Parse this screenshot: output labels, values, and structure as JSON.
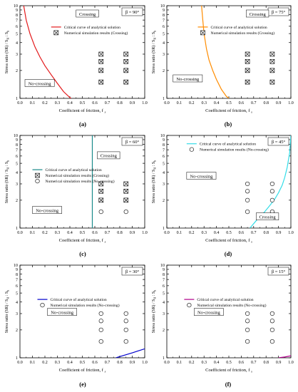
{
  "figure": {
    "panels": [
      {
        "label": "(a)",
        "beta": "β = 90°",
        "xlabel": "Coefficient of friction, f",
        "xsub": "s",
        "ylabel": "Stress ratio (SR) / S",
        "crossing": "Crossing",
        "nocrossing": "No-crossing",
        "legend": [
          "Critical curve of analytical solution",
          "Numerical simulation results (Crossing)"
        ]
      },
      {
        "label": "(b)",
        "beta": "β = 75°",
        "xlabel": "Coefficient of friction, f",
        "xsub": "s",
        "ylabel": "Stress ratio (SR) / S",
        "crossing": "Crossing",
        "nocrossing": "No-crossing",
        "legend": [
          "Critical curve of analytical solution",
          "Numerical simulation results (Crossing)"
        ]
      },
      {
        "label": "(c)",
        "beta": "β = 60°",
        "xlabel": "Coefficient of friction, f",
        "xsub": "s",
        "ylabel": "Stress ratio (SR) / S",
        "crossing": "Crossing",
        "nocrossing": "No-crossing",
        "legend": [
          "Critical curve of analytical solution",
          "Numerical simulation results (Crossing)",
          "Numerical simulation results (No-crossing)"
        ]
      },
      {
        "label": "(d)",
        "beta": "β = 45°",
        "xlabel": "Coefficient of friction, f",
        "xsub": "s",
        "ylabel": "Stress ratio (SR) / S",
        "crossing": "Crossing",
        "nocrossing": "No-crossing",
        "legend": [
          "Critical curve of analytical solution",
          "Numerical simulation results (No-crossing)"
        ]
      },
      {
        "label": "(e)",
        "beta": "β = 30°",
        "xlabel": "Coefficient of friction, f",
        "xsub": "s",
        "ylabel": "Stress ratio (SR) / S",
        "crossing": "",
        "nocrossing": "No-crossing",
        "legend": [
          "Critical curve of analytical solution",
          "Numerical simulation results (No-crossing)"
        ]
      },
      {
        "label": "(f)",
        "beta": "β = 15°",
        "xlabel": "Coefficient of friction, f",
        "xsub": "s",
        "ylabel": "Stress ratio (SR) / S",
        "crossing": "",
        "nocrossing": "No-crossing",
        "legend": [
          "Critical curve of analytical solution",
          "Numerical simulation results (No-crossing)"
        ]
      }
    ]
  },
  "chart_data": [
    {
      "type": "scatter",
      "title": "β = 90°",
      "xlabel": "Coefficient of friction, fs",
      "ylabel": "Stress ratio (SR) / SH:Sh",
      "xlim": [
        0,
        1
      ],
      "ylim": [
        1,
        10
      ],
      "yscale": "log",
      "grid": false,
      "legend_position": "top-right",
      "xticks": [
        "0.0",
        "0.1",
        "0.2",
        "0.3",
        "0.4",
        "0.5",
        "0.6",
        "0.7",
        "0.8",
        "0.9",
        "1.0"
      ],
      "yticks": [
        "1",
        "2",
        "3",
        "4",
        "5",
        "6",
        "7",
        "8",
        "9",
        "10"
      ],
      "series": [
        {
          "name": "Critical curve of analytical solution",
          "type": "line",
          "color": "#e31a1c",
          "x": [
            0.03,
            0.05,
            0.08,
            0.12,
            0.16,
            0.2,
            0.25,
            0.3,
            0.35,
            0.4,
            0.41
          ],
          "y": [
            10,
            7.0,
            5.0,
            3.6,
            2.8,
            2.25,
            1.8,
            1.45,
            1.18,
            1.02,
            1.0
          ]
        },
        {
          "name": "Numerical simulation results (Crossing)",
          "marker": "crossed-square",
          "x": [
            0.65,
            0.65,
            0.65,
            0.65,
            0.85,
            0.85,
            0.85,
            0.85
          ],
          "y": [
            3,
            2.5,
            2,
            1.5,
            3,
            2.5,
            2,
            1.5
          ]
        }
      ]
    },
    {
      "type": "scatter",
      "title": "β = 75°",
      "xlabel": "Coefficient of friction, fs",
      "ylabel": "Stress ratio (SR) / SH:Sh",
      "xlim": [
        0,
        1
      ],
      "ylim": [
        1,
        10
      ],
      "yscale": "log",
      "grid": false,
      "legend_position": "top-right",
      "xticks": [
        "0.0",
        "0.1",
        "0.2",
        "0.3",
        "0.4",
        "0.5",
        "0.6",
        "0.7",
        "0.8",
        "0.9",
        "1.0"
      ],
      "yticks": [
        "1",
        "2",
        "3",
        "4",
        "5",
        "6",
        "7",
        "8",
        "9",
        "10"
      ],
      "series": [
        {
          "name": "Critical curve of analytical solution",
          "type": "line",
          "color": "#ff8c00",
          "x": [
            0.28,
            0.29,
            0.3,
            0.32,
            0.34,
            0.37,
            0.4,
            0.44,
            0.48,
            0.5
          ],
          "y": [
            10,
            7.0,
            5.0,
            3.4,
            2.6,
            2.0,
            1.6,
            1.25,
            1.05,
            1.0
          ]
        },
        {
          "name": "Numerical simulation results (Crossing)",
          "marker": "crossed-square",
          "x": [
            0.65,
            0.65,
            0.65,
            0.65,
            0.85,
            0.85,
            0.85,
            0.85
          ],
          "y": [
            3,
            2.5,
            2,
            1.5,
            3,
            2.5,
            2,
            1.5
          ]
        }
      ]
    },
    {
      "type": "scatter",
      "title": "β = 60°",
      "xlabel": "Coefficient of friction, fs",
      "ylabel": "Stress ratio (SR) / SH:Sh",
      "xlim": [
        0,
        1
      ],
      "ylim": [
        1,
        10
      ],
      "yscale": "log",
      "grid": false,
      "legend_position": "top-left",
      "xticks": [
        "0.0",
        "0.1",
        "0.2",
        "0.3",
        "0.4",
        "0.5",
        "0.6",
        "0.7",
        "0.8",
        "0.9",
        "1.0"
      ],
      "yticks": [
        "1",
        "2",
        "3",
        "4",
        "5",
        "6",
        "7",
        "8",
        "9",
        "10"
      ],
      "series": [
        {
          "name": "Critical curve of analytical solution",
          "type": "line",
          "color": "#1a8a8a",
          "x": [
            0.58,
            0.58
          ],
          "y": [
            1,
            10
          ]
        },
        {
          "name": "Numerical simulation results (Crossing)",
          "marker": "crossed-square",
          "x": [
            0.65,
            0.65,
            0.65,
            0.85,
            0.85,
            0.85
          ],
          "y": [
            3,
            2.5,
            2,
            3,
            2.5,
            2
          ]
        },
        {
          "name": "Numerical simulation results (No-crossing)",
          "marker": "circle",
          "x": [
            0.65,
            0.85
          ],
          "y": [
            1.5,
            1.5
          ]
        }
      ]
    },
    {
      "type": "scatter",
      "title": "β = 45°",
      "xlabel": "Coefficient of friction, fs",
      "ylabel": "Stress ratio (SR) / SH:Sh",
      "xlim": [
        0,
        1
      ],
      "ylim": [
        1,
        10
      ],
      "yscale": "log",
      "grid": false,
      "legend_position": "top-left",
      "xticks": [
        "0.0",
        "0.1",
        "0.2",
        "0.3",
        "0.4",
        "0.5",
        "0.6",
        "0.7",
        "0.8",
        "0.9",
        "1.0"
      ],
      "yticks": [
        "1",
        "2",
        "3",
        "4",
        "5",
        "6",
        "7",
        "8",
        "9",
        "10"
      ],
      "series": [
        {
          "name": "Critical curve of analytical solution",
          "type": "line",
          "color": "#33dde8",
          "x": [
            0.67,
            0.72,
            0.78,
            0.83,
            0.87,
            0.9,
            0.93,
            0.95,
            0.97,
            0.99,
            1.0
          ],
          "y": [
            1.0,
            1.2,
            1.45,
            1.75,
            2.05,
            2.4,
            2.9,
            3.5,
            4.5,
            6.5,
            10
          ]
        },
        {
          "name": "Numerical simulation results (No-crossing)",
          "marker": "circle",
          "x": [
            0.65,
            0.65,
            0.65,
            0.65,
            0.85,
            0.85,
            0.85,
            0.85
          ],
          "y": [
            3,
            2.5,
            2,
            1.5,
            3,
            2.5,
            2,
            1.5
          ]
        }
      ]
    },
    {
      "type": "scatter",
      "title": "β = 30°",
      "xlabel": "Coefficient of friction, fs",
      "ylabel": "Stress ratio (SR) / SH:Sh",
      "xlim": [
        0,
        1
      ],
      "ylim": [
        1,
        10
      ],
      "yscale": "log",
      "grid": false,
      "legend_position": "top-right",
      "xticks": [
        "0.0",
        "0.1",
        "0.2",
        "0.3",
        "0.4",
        "0.5",
        "0.6",
        "0.7",
        "0.8",
        "0.9",
        "1.0"
      ],
      "yticks": [
        "1",
        "2",
        "3",
        "4",
        "5",
        "6",
        "7",
        "8",
        "9",
        "10"
      ],
      "series": [
        {
          "name": "Critical curve of analytical solution",
          "type": "line",
          "color": "#0000cc",
          "x": [
            0.77,
            0.8,
            0.85,
            0.9,
            0.95,
            1.0
          ],
          "y": [
            1.0,
            1.03,
            1.08,
            1.13,
            1.19,
            1.25
          ]
        },
        {
          "name": "Numerical simulation results (No-crossing)",
          "marker": "circle",
          "x": [
            0.65,
            0.65,
            0.65,
            0.65,
            0.85,
            0.85,
            0.85,
            0.85
          ],
          "y": [
            3,
            2.5,
            2,
            1.5,
            3,
            2.5,
            2,
            1.5
          ]
        }
      ]
    },
    {
      "type": "scatter",
      "title": "β = 15°",
      "xlabel": "Coefficient of friction, fs",
      "ylabel": "Stress ratio (SR) / SH:Sh",
      "xlim": [
        0,
        1
      ],
      "ylim": [
        1,
        10
      ],
      "yscale": "log",
      "grid": false,
      "legend_position": "top-right",
      "xticks": [
        "0.0",
        "0.1",
        "0.2",
        "0.3",
        "0.4",
        "0.5",
        "0.6",
        "0.7",
        "0.8",
        "0.9",
        "1.0"
      ],
      "yticks": [
        "1",
        "2",
        "3",
        "4",
        "5",
        "6",
        "7",
        "8",
        "9",
        "10"
      ],
      "series": [
        {
          "name": "Critical curve of analytical solution",
          "type": "line",
          "color": "#b0008a",
          "x": [
            0.9,
            0.95,
            1.0
          ],
          "y": [
            1.0,
            1.02,
            1.05
          ]
        },
        {
          "name": "Numerical simulation results (No-crossing)",
          "marker": "circle",
          "x": [
            0.65,
            0.65,
            0.65,
            0.65,
            0.85,
            0.85,
            0.85,
            0.85
          ],
          "y": [
            3,
            2.5,
            2,
            1.5,
            3,
            2.5,
            2,
            1.5
          ]
        }
      ]
    }
  ]
}
